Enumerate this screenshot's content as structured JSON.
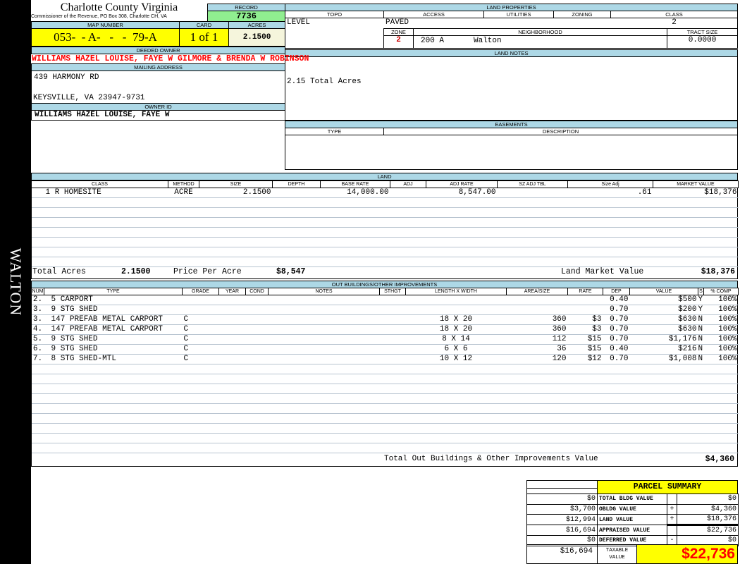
{
  "sidebar": {
    "neighborhood": "WALTON"
  },
  "header": {
    "county": "Charlotte County Virginia",
    "office": "Commissioner of the Revenue, PO Box 308, Charlotte CH, VA",
    "record_label": "RECORD",
    "record": "7736"
  },
  "parcel": {
    "map_label": "MAP NUMBER",
    "map_number": "053-  - A-   -   -  79-A",
    "card_label": "CARD",
    "card": "1 of 1",
    "acres_label": "ACRES",
    "acres": "2.1500"
  },
  "owner": {
    "deeded_label": "DEEDED OWNER",
    "deeded": "WILLIAMS HAZEL LOUISE, FAYE W GILMORE & BRENDA W ROBINSON",
    "mailing_label": "MAILING ADDRESS",
    "address1": "439 HARMONY RD",
    "address2": "KEYSVILLE, VA 23947-9731",
    "id_label": "OWNER ID",
    "id": "WILLIAMS HAZEL LOUISE, FAYE W"
  },
  "land_properties": {
    "title": "LAND PROPERTIES",
    "topo_label": "TOPO",
    "access_label": "ACCESS",
    "utilities_label": "UTILITIES",
    "zoning_label": "ZONING",
    "class_label": "CLASS",
    "topo": "LEVEL",
    "access": "PAVED",
    "class": "2",
    "zone_label": "ZONE",
    "neighborhood_label": "NEIGHBORHOOD",
    "tract_label": "TRACT SIZE",
    "zone": "2",
    "neighborhood_code": "200 A",
    "neighborhood": "Walton",
    "tract_size": "0.0000"
  },
  "land_notes": {
    "title": "LAND NOTES",
    "text": "2.15 Total Acres"
  },
  "easements": {
    "title": "EASEMENTS",
    "type_label": "TYPE",
    "description_label": "DESCRIPTION"
  },
  "land": {
    "title": "LAND",
    "columns": [
      "CLASS",
      "METHOD",
      "SIZE",
      "DEPTH",
      "BASE RATE",
      "ADJ",
      "ADJ RATE",
      "SZ ADJ TBL",
      "Size Adj",
      "MARKET VALUE"
    ],
    "rows": [
      [
        "1 R HOMESITE",
        "ACRE",
        "2.1500",
        "",
        "14,000.00",
        "",
        "8,547.00",
        "",
        ".61",
        "$18,376"
      ]
    ],
    "total_acres_label": "Total Acres",
    "total_acres": "2.1500",
    "ppa_label": "Price Per Acre",
    "ppa": "$8,547",
    "market_label": "Land Market Value",
    "market": "$18,376"
  },
  "outbuildings": {
    "title": "OUT BUILDINGS/OTHER IMPROVEMENTS",
    "columns": [
      "NUM",
      "TYPE",
      "GRADE",
      "YEAR",
      "COND",
      "NOTES",
      "STHGT",
      "LENGTH X WIDTH",
      "AREA/SIZE",
      "RATE",
      "DEP",
      "VALUE",
      "S",
      "% COMP"
    ],
    "rows": [
      [
        "2.",
        "5 CARPORT",
        "",
        "",
        "",
        "",
        "",
        "",
        "",
        "",
        "0.40",
        "$500",
        "Y",
        "100%"
      ],
      [
        "3.",
        "9 STG SHED",
        "",
        "",
        "",
        "",
        "",
        "",
        "",
        "",
        "0.70",
        "$200",
        "Y",
        "100%"
      ],
      [
        "3.",
        "147 PREFAB METAL CARPORT",
        "C",
        "",
        "",
        "",
        "",
        "18 X 20",
        "360",
        "$3",
        "0.70",
        "$630",
        "N",
        "100%"
      ],
      [
        "4.",
        "147 PREFAB METAL CARPORT",
        "C",
        "",
        "",
        "",
        "",
        "18 X 20",
        "360",
        "$3",
        "0.70",
        "$630",
        "N",
        "100%"
      ],
      [
        "5.",
        "9 STG SHED",
        "C",
        "",
        "",
        "",
        "",
        "8 X 14",
        "112",
        "$15",
        "0.70",
        "$1,176",
        "N",
        "100%"
      ],
      [
        "6.",
        "9 STG SHED",
        "C",
        "",
        "",
        "",
        "",
        "6 X 6",
        "36",
        "$15",
        "0.40",
        "$216",
        "N",
        "100%"
      ],
      [
        "7.",
        "8 STG SHED-MTL",
        "C",
        "",
        "",
        "",
        "",
        "10 X 12",
        "120",
        "$12",
        "0.70",
        "$1,008",
        "N",
        "100%"
      ]
    ],
    "total_label": "Total Out Buildings & Other Improvements Value",
    "total": "$4,360"
  },
  "summary": {
    "title": "PARCEL SUMMARY",
    "rows": [
      {
        "left": "$0",
        "label": "TOTAL BLDG VALUE",
        "op": "",
        "right": "$0"
      },
      {
        "left": "$3,700",
        "label": "OBLDG VALUE",
        "op": "+",
        "right": "$4,360"
      },
      {
        "left": "$12,994",
        "label": "LAND VALUE",
        "op": "+",
        "right": "$18,376"
      },
      {
        "left": "$16,694",
        "label": "APPRAISED VALUE",
        "op": "",
        "right": "$22,736"
      },
      {
        "left": "$0",
        "label": "DEFERRED VALUE",
        "op": "-",
        "right": "$0"
      }
    ],
    "taxable_left": "$16,694",
    "taxable_label": "TAXABLE VALUE",
    "taxable": "$22,736"
  },
  "colors": {
    "header": "#add8e6",
    "record": "#90ee90",
    "highlight": "#ffff00",
    "owner": "#ff0000"
  }
}
